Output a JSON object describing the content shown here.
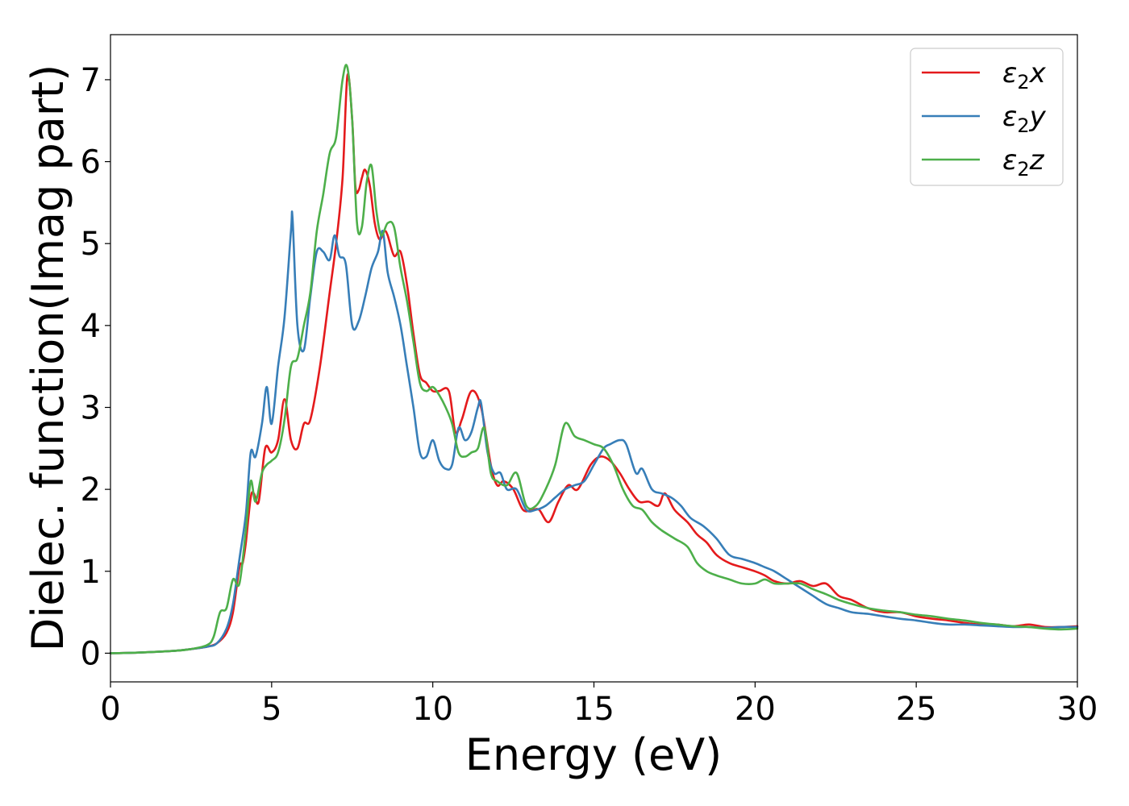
{
  "chart_data": {
    "type": "line",
    "xlabel": "Energy (eV)",
    "ylabel": "Dielec. function(Imag part)",
    "xlim": [
      0,
      30
    ],
    "ylim": [
      -0.35,
      7.55
    ],
    "xticks": [
      "0",
      "5",
      "10",
      "15",
      "20",
      "25",
      "30"
    ],
    "yticks": [
      "0",
      "1",
      "2",
      "3",
      "4",
      "5",
      "6",
      "7"
    ],
    "grid": false,
    "legend_position": "top-right",
    "series": [
      {
        "name": "ε₂x",
        "legend_base": "ε",
        "legend_sub": "2",
        "legend_suffix": "x",
        "color": "#e41a1c",
        "x": [
          0,
          1,
          2,
          2.5,
          3,
          3.3,
          3.6,
          3.8,
          4.0,
          4.1,
          4.2,
          4.35,
          4.45,
          4.6,
          4.8,
          5.0,
          5.2,
          5.4,
          5.6,
          5.8,
          6.0,
          6.2,
          6.5,
          6.8,
          7.0,
          7.2,
          7.35,
          7.5,
          7.6,
          7.7,
          7.8,
          7.9,
          8.05,
          8.2,
          8.35,
          8.5,
          8.6,
          8.8,
          9.0,
          9.2,
          9.4,
          9.6,
          9.8,
          10.0,
          10.2,
          10.5,
          10.7,
          10.9,
          11.2,
          11.5,
          11.8,
          12.0,
          12.2,
          12.5,
          12.8,
          13.1,
          13.3,
          13.6,
          13.9,
          14.2,
          14.5,
          14.9,
          15.2,
          15.5,
          15.8,
          16.1,
          16.4,
          16.7,
          17.0,
          17.2,
          17.5,
          17.9,
          18.2,
          18.5,
          18.8,
          19.2,
          19.6,
          20.0,
          20.3,
          20.6,
          21.0,
          21.4,
          21.8,
          22.2,
          22.6,
          23.0,
          23.5,
          24.0,
          24.5,
          25.0,
          25.5,
          26.0,
          26.5,
          27.0,
          27.5,
          28.0,
          28.5,
          29.0,
          29.5,
          30.0
        ],
        "y": [
          0.0,
          0.01,
          0.03,
          0.05,
          0.08,
          0.12,
          0.25,
          0.5,
          1.05,
          1.1,
          1.35,
          1.9,
          1.95,
          1.85,
          2.5,
          2.45,
          2.6,
          3.1,
          2.6,
          2.5,
          2.8,
          2.85,
          3.5,
          4.4,
          5.0,
          5.8,
          7.05,
          6.5,
          5.7,
          5.65,
          5.8,
          5.9,
          5.7,
          5.25,
          5.05,
          5.15,
          5.1,
          4.85,
          4.9,
          4.5,
          3.9,
          3.4,
          3.3,
          3.2,
          3.2,
          3.2,
          2.7,
          2.85,
          3.2,
          3.0,
          2.3,
          2.05,
          2.1,
          2.0,
          1.75,
          1.75,
          1.75,
          1.6,
          1.85,
          2.05,
          2.0,
          2.3,
          2.4,
          2.35,
          2.2,
          2.0,
          1.85,
          1.85,
          1.8,
          1.95,
          1.75,
          1.6,
          1.45,
          1.35,
          1.2,
          1.1,
          1.05,
          1.0,
          0.95,
          0.88,
          0.85,
          0.88,
          0.82,
          0.85,
          0.7,
          0.65,
          0.55,
          0.5,
          0.5,
          0.45,
          0.42,
          0.4,
          0.37,
          0.35,
          0.35,
          0.33,
          0.35,
          0.32,
          0.32,
          0.33
        ]
      },
      {
        "name": "ε₂y",
        "legend_base": "ε",
        "legend_sub": "2",
        "legend_suffix": "y",
        "color": "#377eb8",
        "x": [
          0,
          1,
          2,
          2.5,
          3,
          3.3,
          3.6,
          3.8,
          4.0,
          4.2,
          4.35,
          4.5,
          4.7,
          4.85,
          5.0,
          5.2,
          5.4,
          5.6,
          5.65,
          5.8,
          6.0,
          6.2,
          6.4,
          6.6,
          6.8,
          6.95,
          7.1,
          7.3,
          7.5,
          7.7,
          7.9,
          8.1,
          8.3,
          8.45,
          8.6,
          8.8,
          9.0,
          9.2,
          9.4,
          9.6,
          9.8,
          10.0,
          10.2,
          10.4,
          10.6,
          10.8,
          11.0,
          11.2,
          11.4,
          11.5,
          11.7,
          11.9,
          12.1,
          12.3,
          12.6,
          12.9,
          13.2,
          13.5,
          13.8,
          14.1,
          14.4,
          14.7,
          15.0,
          15.3,
          15.5,
          15.8,
          16.0,
          16.3,
          16.5,
          16.8,
          17.1,
          17.4,
          17.7,
          18.0,
          18.4,
          18.8,
          19.2,
          19.6,
          20.0,
          20.3,
          20.6,
          21.0,
          21.4,
          21.8,
          22.2,
          22.6,
          23.0,
          23.5,
          24.0,
          24.5,
          25.0,
          25.5,
          26.0,
          26.5,
          27.0,
          27.5,
          28.0,
          28.5,
          29.0,
          29.5,
          30.0
        ],
        "y": [
          0.0,
          0.01,
          0.03,
          0.05,
          0.08,
          0.12,
          0.3,
          0.6,
          1.15,
          1.7,
          2.45,
          2.4,
          2.8,
          3.25,
          2.8,
          3.5,
          4.1,
          5.15,
          5.3,
          4.0,
          3.7,
          4.35,
          4.9,
          4.9,
          4.8,
          5.1,
          4.85,
          4.75,
          4.0,
          4.05,
          4.35,
          4.7,
          4.9,
          5.15,
          4.65,
          4.35,
          4.0,
          3.5,
          3.0,
          2.45,
          2.4,
          2.6,
          2.35,
          2.25,
          2.3,
          2.75,
          2.6,
          2.7,
          3.0,
          3.05,
          2.45,
          2.2,
          2.2,
          2.0,
          2.0,
          1.75,
          1.75,
          1.8,
          1.9,
          2.0,
          2.05,
          2.1,
          2.3,
          2.5,
          2.55,
          2.6,
          2.55,
          2.2,
          2.25,
          2.0,
          1.95,
          1.9,
          1.8,
          1.65,
          1.55,
          1.4,
          1.2,
          1.15,
          1.1,
          1.05,
          1.0,
          0.9,
          0.8,
          0.7,
          0.6,
          0.55,
          0.5,
          0.48,
          0.45,
          0.42,
          0.4,
          0.37,
          0.35,
          0.35,
          0.34,
          0.33,
          0.32,
          0.32,
          0.31,
          0.32,
          0.32
        ]
      },
      {
        "name": "ε₂z",
        "legend_base": "ε",
        "legend_sub": "2",
        "legend_suffix": "z",
        "color": "#4daf4a",
        "x": [
          0,
          1,
          2,
          2.5,
          3,
          3.2,
          3.4,
          3.6,
          3.8,
          4.0,
          4.2,
          4.35,
          4.5,
          4.7,
          4.85,
          5.0,
          5.2,
          5.4,
          5.6,
          5.8,
          6.0,
          6.2,
          6.4,
          6.6,
          6.8,
          7.0,
          7.2,
          7.35,
          7.5,
          7.65,
          7.8,
          7.95,
          8.1,
          8.25,
          8.4,
          8.6,
          8.8,
          9.0,
          9.2,
          9.4,
          9.6,
          9.8,
          10.0,
          10.2,
          10.4,
          10.6,
          10.8,
          11.0,
          11.2,
          11.4,
          11.6,
          11.8,
          12.0,
          12.3,
          12.6,
          12.9,
          13.2,
          13.5,
          13.8,
          14.1,
          14.4,
          14.7,
          15.0,
          15.3,
          15.6,
          15.9,
          16.2,
          16.5,
          16.8,
          17.1,
          17.5,
          17.9,
          18.2,
          18.5,
          18.8,
          19.2,
          19.6,
          20.0,
          20.3,
          20.6,
          21.0,
          21.4,
          21.8,
          22.2,
          22.6,
          23.0,
          23.5,
          24.0,
          24.5,
          25.0,
          25.5,
          26.0,
          26.5,
          27.0,
          27.5,
          28.0,
          28.5,
          29.0,
          29.5,
          30.0
        ],
        "y": [
          0.0,
          0.01,
          0.03,
          0.05,
          0.1,
          0.2,
          0.5,
          0.55,
          0.9,
          0.85,
          1.5,
          2.1,
          1.85,
          2.2,
          2.3,
          2.35,
          2.45,
          2.85,
          3.5,
          3.6,
          4.0,
          4.4,
          5.15,
          5.6,
          6.1,
          6.3,
          7.0,
          7.15,
          6.5,
          5.25,
          5.2,
          5.75,
          5.95,
          5.4,
          5.1,
          5.25,
          5.2,
          4.7,
          4.3,
          3.8,
          3.3,
          3.2,
          3.25,
          3.15,
          3.0,
          2.8,
          2.45,
          2.4,
          2.45,
          2.5,
          2.75,
          2.2,
          2.1,
          2.05,
          2.2,
          1.8,
          1.8,
          2.0,
          2.3,
          2.8,
          2.65,
          2.6,
          2.55,
          2.5,
          2.3,
          2.0,
          1.8,
          1.75,
          1.6,
          1.5,
          1.4,
          1.3,
          1.1,
          1.0,
          0.95,
          0.9,
          0.85,
          0.85,
          0.9,
          0.85,
          0.85,
          0.85,
          0.78,
          0.72,
          0.65,
          0.6,
          0.55,
          0.52,
          0.5,
          0.47,
          0.45,
          0.42,
          0.4,
          0.37,
          0.35,
          0.33,
          0.32,
          0.3,
          0.29,
          0.3
        ]
      }
    ]
  }
}
